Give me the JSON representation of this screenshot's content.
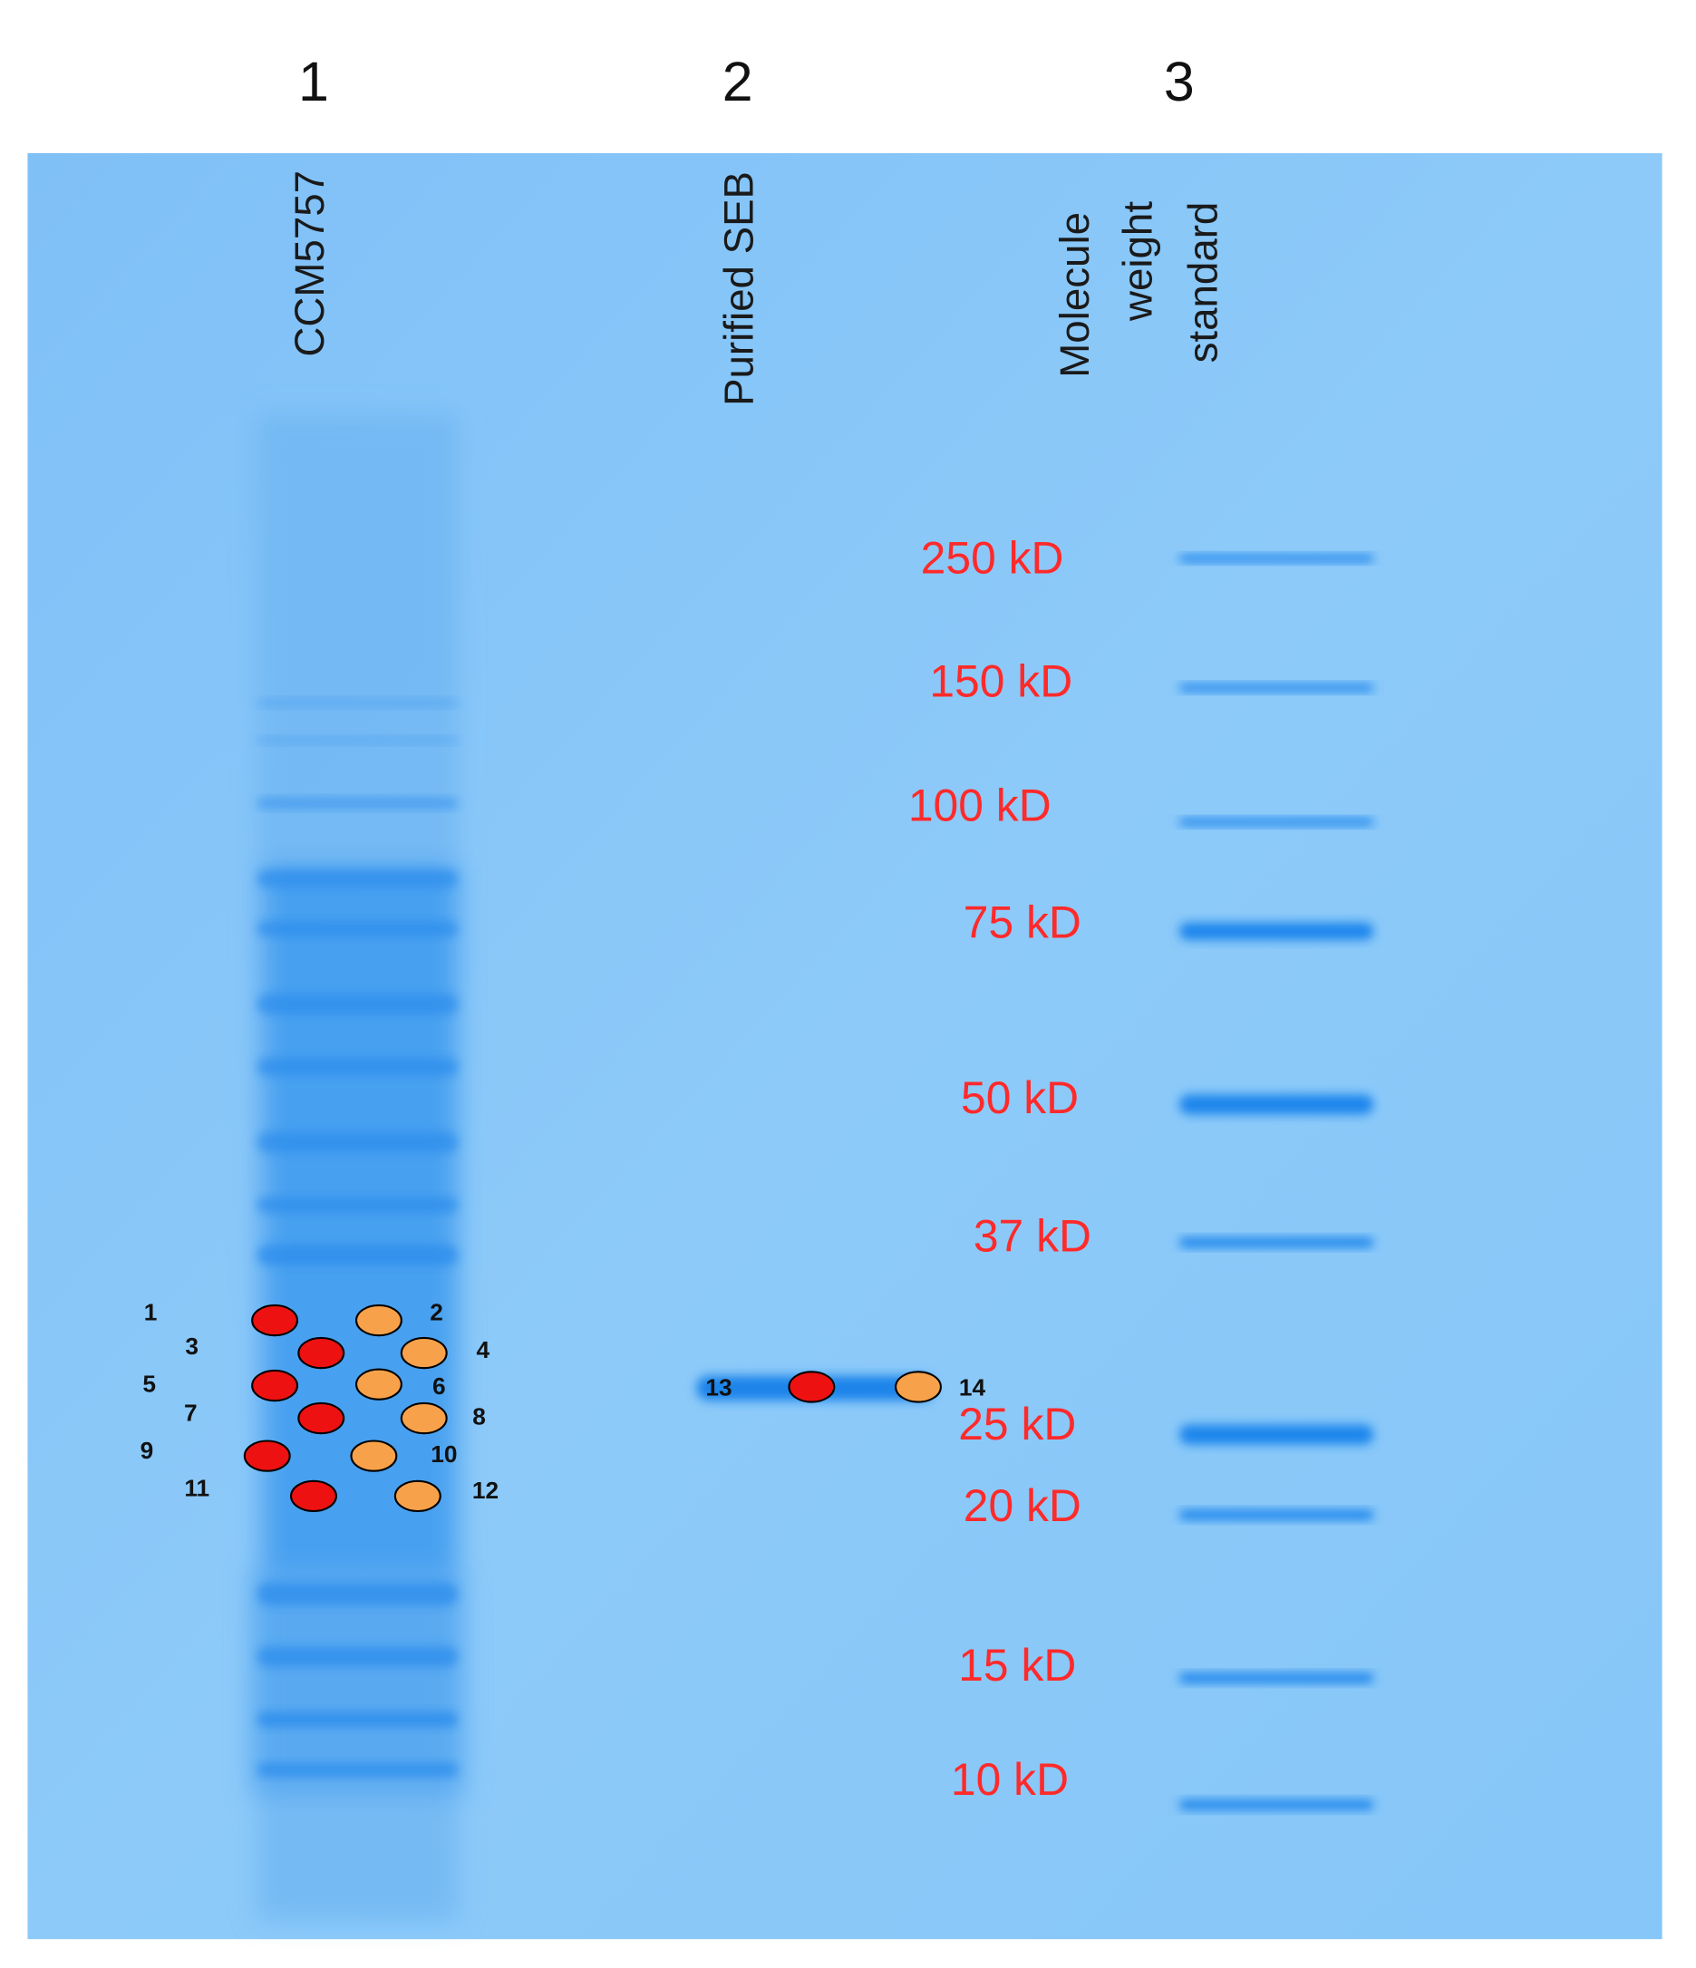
{
  "lanes": [
    {
      "number": "1",
      "name": [
        "CCM5757"
      ]
    },
    {
      "number": "2",
      "name": [
        "Purified SEB"
      ]
    },
    {
      "number": "3",
      "name": [
        "Molecule",
        "weight",
        "standard"
      ]
    }
  ],
  "markers": [
    "250 kD",
    "150 kD",
    "100 kD",
    "75 kD",
    "50 kD",
    "37 kD",
    "25 kD",
    "20 kD",
    "15 kD",
    "10 kD"
  ],
  "spots": [
    "1",
    "2",
    "3",
    "4",
    "5",
    "6",
    "7",
    "8",
    "9",
    "10",
    "11",
    "12",
    "13",
    "14"
  ]
}
